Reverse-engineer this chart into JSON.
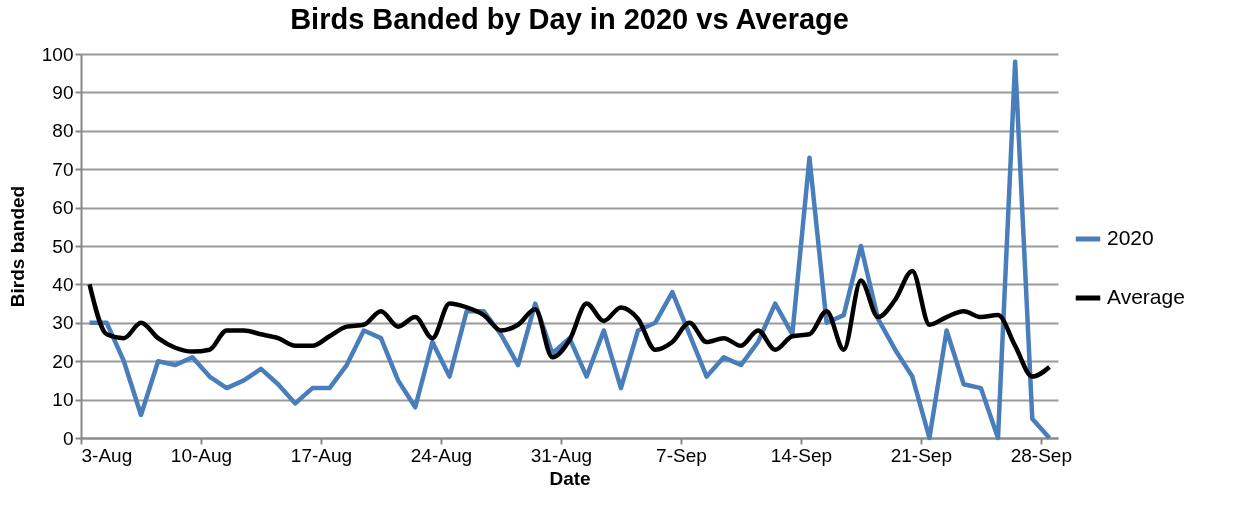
{
  "chart_data": {
    "type": "line",
    "title": "Birds Banded by Day in 2020 vs Average",
    "xlabel": "Date",
    "ylabel": "Birds banded",
    "x": [
      "2020-08-03T12:00",
      "2020-08-04T12:00",
      "2020-08-05T12:00",
      "2020-08-06T12:00",
      "2020-08-07T12:00",
      "2020-08-08T12:00",
      "2020-08-09T12:00",
      "2020-08-10T12:00",
      "2020-08-11T12:00",
      "2020-08-12T12:00",
      "2020-08-13T12:00",
      "2020-08-14T12:00",
      "2020-08-15T12:00",
      "2020-08-16T12:00",
      "2020-08-17T12:00",
      "2020-08-18T12:00",
      "2020-08-19T12:00",
      "2020-08-20T12:00",
      "2020-08-21T12:00",
      "2020-08-22T12:00",
      "2020-08-23T12:00",
      "2020-08-24T12:00",
      "2020-08-25T12:00",
      "2020-08-26T12:00",
      "2020-08-27T12:00",
      "2020-08-28T12:00",
      "2020-08-29T12:00",
      "2020-08-30T12:00",
      "2020-08-31T12:00",
      "2020-09-01T12:00",
      "2020-09-02T12:00",
      "2020-09-03T12:00",
      "2020-09-04T12:00",
      "2020-09-05T12:00",
      "2020-09-06T12:00",
      "2020-09-07T12:00",
      "2020-09-08T12:00",
      "2020-09-09T12:00",
      "2020-09-10T12:00",
      "2020-09-11T12:00",
      "2020-09-12T12:00",
      "2020-09-13T12:00",
      "2020-09-14T12:00",
      "2020-09-15T12:00",
      "2020-09-16T12:00",
      "2020-09-17T12:00",
      "2020-09-18T12:00",
      "2020-09-19T12:00",
      "2020-09-20T12:00",
      "2020-09-21T12:00",
      "2020-09-22T12:00",
      "2020-09-23T12:00",
      "2020-09-24T12:00",
      "2020-09-25T12:00",
      "2020-09-26T12:00",
      "2020-09-27T12:00",
      "2020-09-28T12:00"
    ],
    "series": [
      {
        "name": "2020",
        "color": "#4a7ebb",
        "values": [
          30,
          30,
          20,
          6,
          20,
          19,
          21,
          16,
          13,
          15,
          18,
          14,
          9,
          13,
          13,
          19,
          28,
          26,
          15,
          8,
          25,
          16,
          33,
          33,
          27,
          19,
          35,
          22,
          26,
          16,
          28,
          13,
          28,
          30,
          38,
          27,
          16,
          21,
          19,
          25,
          35,
          27,
          73,
          30,
          32,
          50,
          31,
          23,
          16,
          0,
          28,
          14,
          13,
          0,
          98,
          5,
          0
        ]
      },
      {
        "name": "Average",
        "color": "#000000",
        "values": [
          40,
          27,
          26,
          30,
          26,
          23.5,
          22.5,
          23,
          28,
          28,
          27,
          26,
          24,
          24,
          26.5,
          29,
          29.5,
          33,
          29,
          31.5,
          26,
          35,
          34,
          32,
          28,
          29.5,
          33.5,
          21,
          25.5,
          35,
          30.5,
          34,
          31,
          23,
          25,
          30,
          25,
          26,
          24,
          28,
          23,
          26.5,
          27,
          33,
          23,
          41,
          31.5,
          36,
          43.5,
          29.5,
          31.5,
          33,
          31.5,
          32,
          24,
          16,
          18.5
        ]
      }
    ],
    "xlim": [
      "2020-08-03",
      "2020-09-29"
    ],
    "xticks": [
      {
        "value": "2020-08-03",
        "label": "3-Aug"
      },
      {
        "value": "2020-08-10",
        "label": "10-Aug"
      },
      {
        "value": "2020-08-17",
        "label": "17-Aug"
      },
      {
        "value": "2020-08-24",
        "label": "24-Aug"
      },
      {
        "value": "2020-08-31",
        "label": "31-Aug"
      },
      {
        "value": "2020-09-07",
        "label": "7-Sep"
      },
      {
        "value": "2020-09-14",
        "label": "14-Sep"
      },
      {
        "value": "2020-09-21",
        "label": "21-Sep"
      },
      {
        "value": "2020-09-28",
        "label": "28-Sep"
      }
    ],
    "ylim": [
      0,
      100
    ],
    "yticks": [
      0,
      10,
      20,
      30,
      40,
      50,
      60,
      70,
      80,
      90,
      100
    ],
    "grid": "y",
    "legend": "right",
    "marker": "none",
    "line_style": "solid"
  }
}
